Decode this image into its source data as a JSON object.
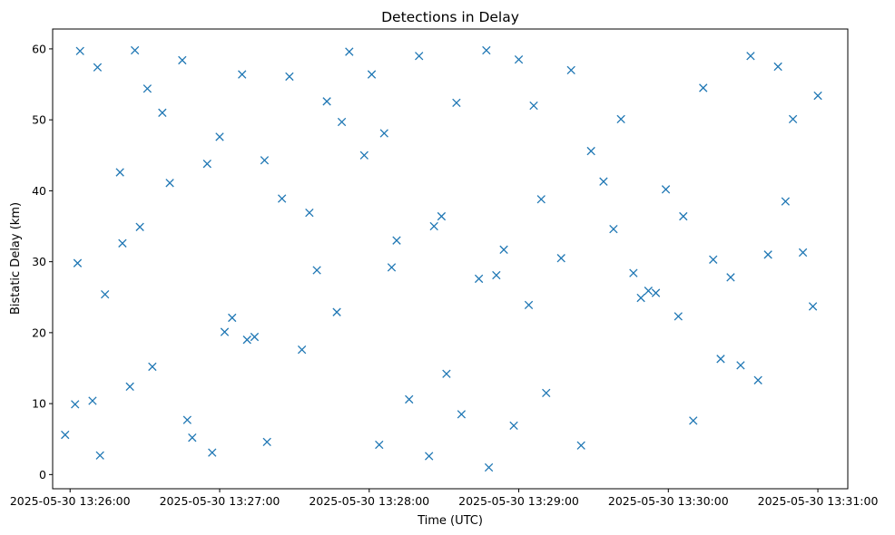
{
  "chart_data": {
    "type": "scatter",
    "title": "Detections in Delay",
    "xlabel": "Time (UTC)",
    "ylabel": "Bistatic Delay (km)",
    "x_tick_labels": [
      "2025-05-30 13:26:00",
      "2025-05-30 13:27:00",
      "2025-05-30 13:28:00",
      "2025-05-30 13:29:00",
      "2025-05-30 13:30:00",
      "2025-05-30 13:31:00"
    ],
    "y_ticks": [
      0,
      10,
      20,
      30,
      40,
      50,
      60
    ],
    "x_range": [
      "2025-05-30 13:25:53",
      "2025-05-30 13:31:12"
    ],
    "ylim": [
      -2,
      62.8
    ],
    "marker": "x",
    "color": "#1f77b4",
    "grid": false,
    "x": [
      "2025-05-30 13:25:58",
      "2025-05-30 13:26:03",
      "2025-05-30 13:26:04",
      "2025-05-30 13:26:11",
      "2025-05-30 13:26:21",
      "2025-05-30 13:26:26",
      "2025-05-30 13:26:37",
      "2025-05-30 13:26:40",
      "2025-05-30 13:26:45",
      "2025-05-30 13:26:55",
      "2025-05-30 13:27:00",
      "2025-05-30 13:27:09",
      "2025-05-30 13:27:18",
      "2025-05-30 13:27:28",
      "2025-05-30 13:27:39",
      "2025-05-30 13:27:43",
      "2025-05-30 13:27:52",
      "2025-05-30 13:28:01",
      "2025-05-30 13:28:06",
      "2025-05-30 13:28:11",
      "2025-05-30 13:28:20",
      "2025-05-30 13:28:26",
      "2025-05-30 13:28:35",
      "2025-05-30 13:28:44",
      "2025-05-30 13:28:47",
      "2025-05-30 13:28:54",
      "2025-05-30 13:29:00",
      "2025-05-30 13:29:09",
      "2025-05-30 13:29:11",
      "2025-05-30 13:29:21",
      "2025-05-30 13:29:34",
      "2025-05-30 13:29:46",
      "2025-05-30 13:29:55",
      "2025-05-30 13:30:04",
      "2025-05-30 13:30:14",
      "2025-05-30 13:30:21",
      "2025-05-30 13:30:33",
      "2025-05-30 13:30:44",
      "2025-05-30 13:30:54",
      "2025-05-30 13:31:00",
      "2025-05-30 13:26:02",
      "2025-05-30 13:26:09",
      "2025-05-30 13:26:14",
      "2025-05-30 13:26:20",
      "2025-05-30 13:26:28",
      "2025-05-30 13:26:31",
      "2025-05-30 13:26:49",
      "2025-05-30 13:26:57",
      "2025-05-30 13:27:05",
      "2025-05-30 13:27:14",
      "2025-05-30 13:27:19",
      "2025-05-30 13:27:36",
      "2025-05-30 13:27:47",
      "2025-05-30 13:27:58",
      "2025-05-30 13:28:04",
      "2025-05-30 13:28:16",
      "2025-05-30 13:28:29",
      "2025-05-30 13:28:31",
      "2025-05-30 13:28:48",
      "2025-05-30 13:28:58",
      "2025-05-30 13:29:04",
      "2025-05-30 13:29:17",
      "2025-05-30 13:29:29",
      "2025-05-30 13:29:38",
      "2025-05-30 13:29:52",
      "2025-05-30 13:29:59",
      "2025-05-30 13:30:10",
      "2025-05-30 13:30:25",
      "2025-05-30 13:30:29",
      "2025-05-30 13:30:40",
      "2025-05-30 13:30:50",
      "2025-05-30 13:26:12",
      "2025-05-30 13:26:24",
      "2025-05-30 13:26:33",
      "2025-05-30 13:26:47",
      "2025-05-30 13:27:02",
      "2025-05-30 13:27:11",
      "2025-05-30 13:27:25",
      "2025-05-30 13:27:33",
      "2025-05-30 13:27:49",
      "2025-05-30 13:28:09",
      "2025-05-30 13:28:24",
      "2025-05-30 13:28:37",
      "2025-05-30 13:28:51",
      "2025-05-30 13:29:06",
      "2025-05-30 13:29:25",
      "2025-05-30 13:29:41",
      "2025-05-30 13:29:49",
      "2025-05-30 13:30:06",
      "2025-05-30 13:30:18",
      "2025-05-30 13:30:36",
      "2025-05-30 13:30:47",
      "2025-05-30 13:30:58"
    ],
    "y": [
      5.6,
      29.8,
      59.7,
      57.4,
      32.6,
      59.8,
      51.0,
      41.1,
      58.4,
      43.8,
      47.6,
      56.4,
      44.3,
      56.1,
      28.8,
      52.6,
      59.6,
      56.4,
      48.1,
      33.0,
      59.0,
      35.0,
      52.4,
      27.6,
      59.8,
      31.7,
      58.5,
      38.8,
      11.5,
      57.0,
      41.3,
      28.4,
      25.6,
      22.3,
      54.5,
      16.3,
      59.0,
      57.5,
      31.3,
      53.4,
      9.9,
      10.4,
      25.4,
      42.6,
      34.9,
      54.4,
      5.2,
      3.1,
      22.1,
      19.4,
      4.6,
      36.9,
      22.9,
      45.0,
      4.2,
      10.6,
      36.4,
      14.2,
      1.0,
      6.9,
      23.9,
      30.5,
      45.6,
      34.6,
      25.9,
      40.2,
      7.6,
      27.8,
      15.4,
      31.0,
      50.1,
      2.7,
      12.4,
      15.2,
      7.7,
      20.1,
      19.0,
      38.9,
      17.6,
      49.7,
      29.2,
      2.6,
      8.5,
      28.1,
      52.0,
      4.1,
      50.1,
      24.9,
      36.4,
      30.3,
      13.3,
      38.5,
      23.7
    ]
  }
}
